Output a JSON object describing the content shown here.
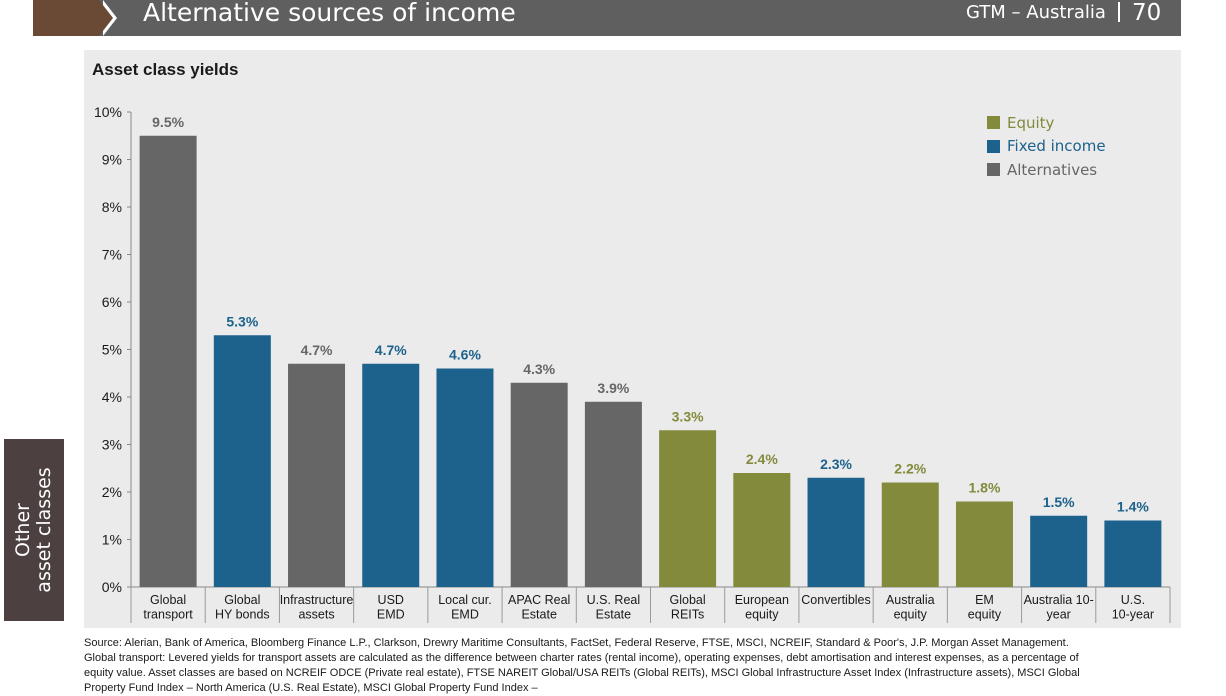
{
  "header": {
    "title": "Alternative sources of income",
    "region": "GTM – Australia",
    "page_number": "70"
  },
  "side_tab": {
    "label": "Other\nasset classes"
  },
  "source_note": "Source: Alerian, Bank of America, Bloomberg Finance L.P., Clarkson, Drewry Maritime Consultants, FactSet, Federal Reserve, FTSE, MSCI, NCREIF, Standard & Poor's, J.P. Morgan Asset Management. Global transport: Levered yields for transport assets are calculated as the difference between charter rates (rental income), operating expenses, debt amortisation and interest expenses, as a percentage of equity value. Asset classes are based on NCREIF ODCE (Private real estate), FTSE NAREIT Global/USA REITs (Global REITs), MSCI Global Infrastructure Asset Index (Infrastructure assets), MSCI Global Property Fund Index – North America (U.S. Real Estate), MSCI Global Property Fund Index –",
  "colors": {
    "equity": "#838a3c",
    "fixed_income": "#1c628c",
    "alternatives": "#666666"
  },
  "chart_data": {
    "type": "bar",
    "title": "Asset class yields",
    "xlabel": "",
    "ylabel": "",
    "ylim": [
      0,
      10
    ],
    "y_ticks": [
      "0%",
      "1%",
      "2%",
      "3%",
      "4%",
      "5%",
      "6%",
      "7%",
      "8%",
      "9%",
      "10%"
    ],
    "grid": false,
    "legend_position": "top-right",
    "legend": [
      {
        "label": "Equity",
        "group": "equity"
      },
      {
        "label": "Fixed income",
        "group": "fixed_income"
      },
      {
        "label": "Alternatives",
        "group": "alternatives"
      }
    ],
    "categories": [
      [
        "Global",
        "transport"
      ],
      [
        "Global",
        "HY bonds"
      ],
      [
        "Infrastructure",
        "assets"
      ],
      [
        "USD",
        "EMD"
      ],
      [
        "Local cur.",
        "EMD"
      ],
      [
        "APAC Real",
        "Estate"
      ],
      [
        "U.S. Real",
        "Estate"
      ],
      [
        "Global",
        "REITs"
      ],
      [
        "European",
        "equity"
      ],
      [
        "Convertibles"
      ],
      [
        "Australia",
        "equity"
      ],
      [
        "EM",
        "equity"
      ],
      [
        "Australia 10-",
        "year"
      ],
      [
        "U.S.",
        "10-year"
      ]
    ],
    "values": [
      9.5,
      5.3,
      4.7,
      4.7,
      4.6,
      4.3,
      3.9,
      3.3,
      2.4,
      2.3,
      2.2,
      1.8,
      1.5,
      1.4
    ],
    "labels": [
      "9.5%",
      "5.3%",
      "4.7%",
      "4.7%",
      "4.6%",
      "4.3%",
      "3.9%",
      "3.3%",
      "2.4%",
      "2.3%",
      "2.2%",
      "1.8%",
      "1.5%",
      "1.4%"
    ],
    "groups": [
      "alternatives",
      "fixed_income",
      "alternatives",
      "fixed_income",
      "fixed_income",
      "alternatives",
      "alternatives",
      "equity",
      "equity",
      "fixed_income",
      "equity",
      "equity",
      "fixed_income",
      "fixed_income"
    ]
  }
}
